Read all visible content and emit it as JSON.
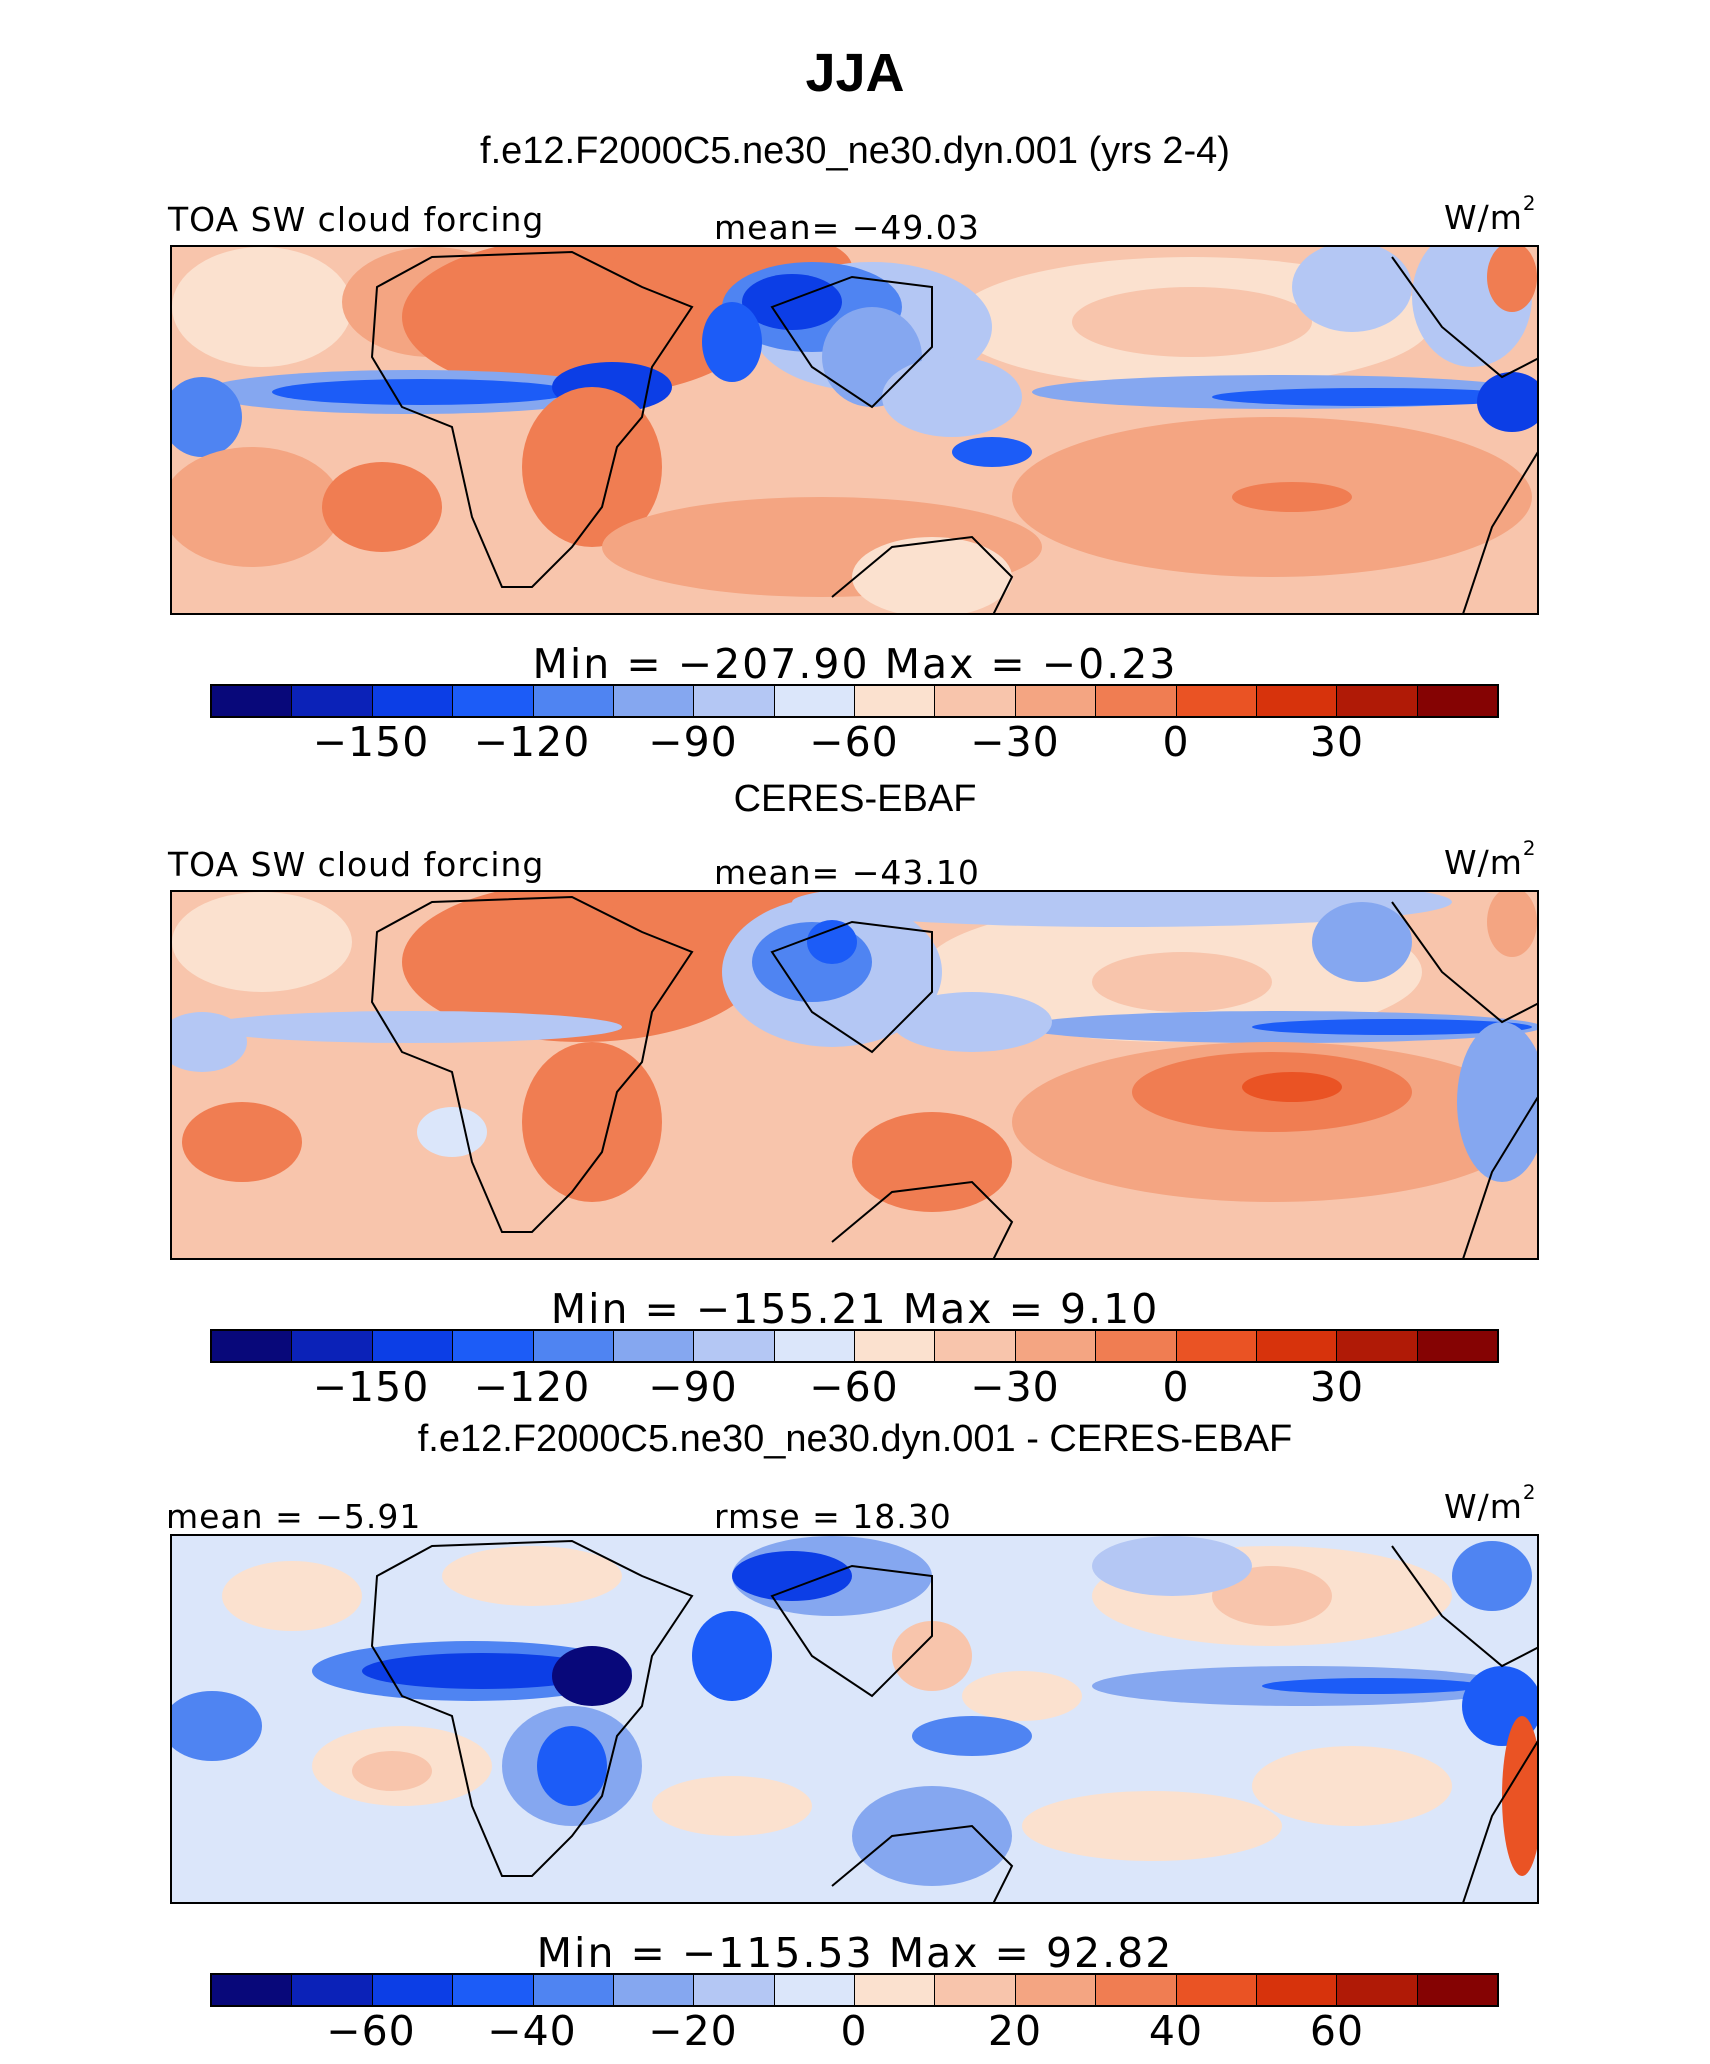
{
  "title": "JJA",
  "colors": {
    "model_obs_scale": [
      "#08087a",
      "#0b22b8",
      "#0c3ee6",
      "#1c5cf7",
      "#4f84f2",
      "#85a7f0",
      "#b4c7f4",
      "#dbe6fa",
      "#fbe1cf",
      "#f8c5ac",
      "#f4a582",
      "#f07d52",
      "#ea5324",
      "#d7330c",
      "#b01a06",
      "#850303"
    ],
    "diff_scale": [
      "#08087a",
      "#0b22b8",
      "#0c3ee6",
      "#1c5cf7",
      "#4f84f2",
      "#85a7f0",
      "#b4c7f4",
      "#dbe6fa",
      "#fbe1cf",
      "#f8c5ac",
      "#f4a582",
      "#f07d52",
      "#ea5324",
      "#d7330c",
      "#b01a06",
      "#850303"
    ]
  },
  "chart_data": [
    {
      "type": "heatmap",
      "title": "f.e12.F2000C5.ne30_ne30.dyn.001 (yrs 2-4)",
      "variable": "TOA SW cloud forcing",
      "units": "W/m",
      "units_exp": "2",
      "mean_label": "mean=",
      "mean": "−49.03",
      "min_label": "Min  =",
      "min": "−207.90",
      "max_label": "Max  =",
      "max": "−0.23",
      "colorbar_ticks": [
        "−150",
        "−120",
        "−90",
        "−60",
        "−30",
        "0",
        "30"
      ]
    },
    {
      "type": "heatmap",
      "title": "CERES-EBAF",
      "variable": "TOA SW cloud forcing",
      "units": "W/m",
      "units_exp": "2",
      "mean_label": "mean=",
      "mean": "−43.10",
      "min_label": "Min  =",
      "min": "−155.21",
      "max_label": "Max  =",
      "max": "9.10",
      "colorbar_ticks": [
        "−150",
        "−120",
        "−90",
        "−60",
        "−30",
        "0",
        "30"
      ]
    },
    {
      "type": "heatmap",
      "title": "f.e12.F2000C5.ne30_ne30.dyn.001 - CERES-EBAF",
      "units": "W/m",
      "units_exp": "2",
      "mean_label": "mean =",
      "mean": "−5.91",
      "rmse_label": "rmse =",
      "rmse": "18.30",
      "min_label": "Min  =",
      "min": "−115.53",
      "max_label": "Max  =",
      "max": "92.82",
      "colorbar_ticks": [
        "−60",
        "−40",
        "−20",
        "0",
        "20",
        "40",
        "60"
      ]
    }
  ]
}
